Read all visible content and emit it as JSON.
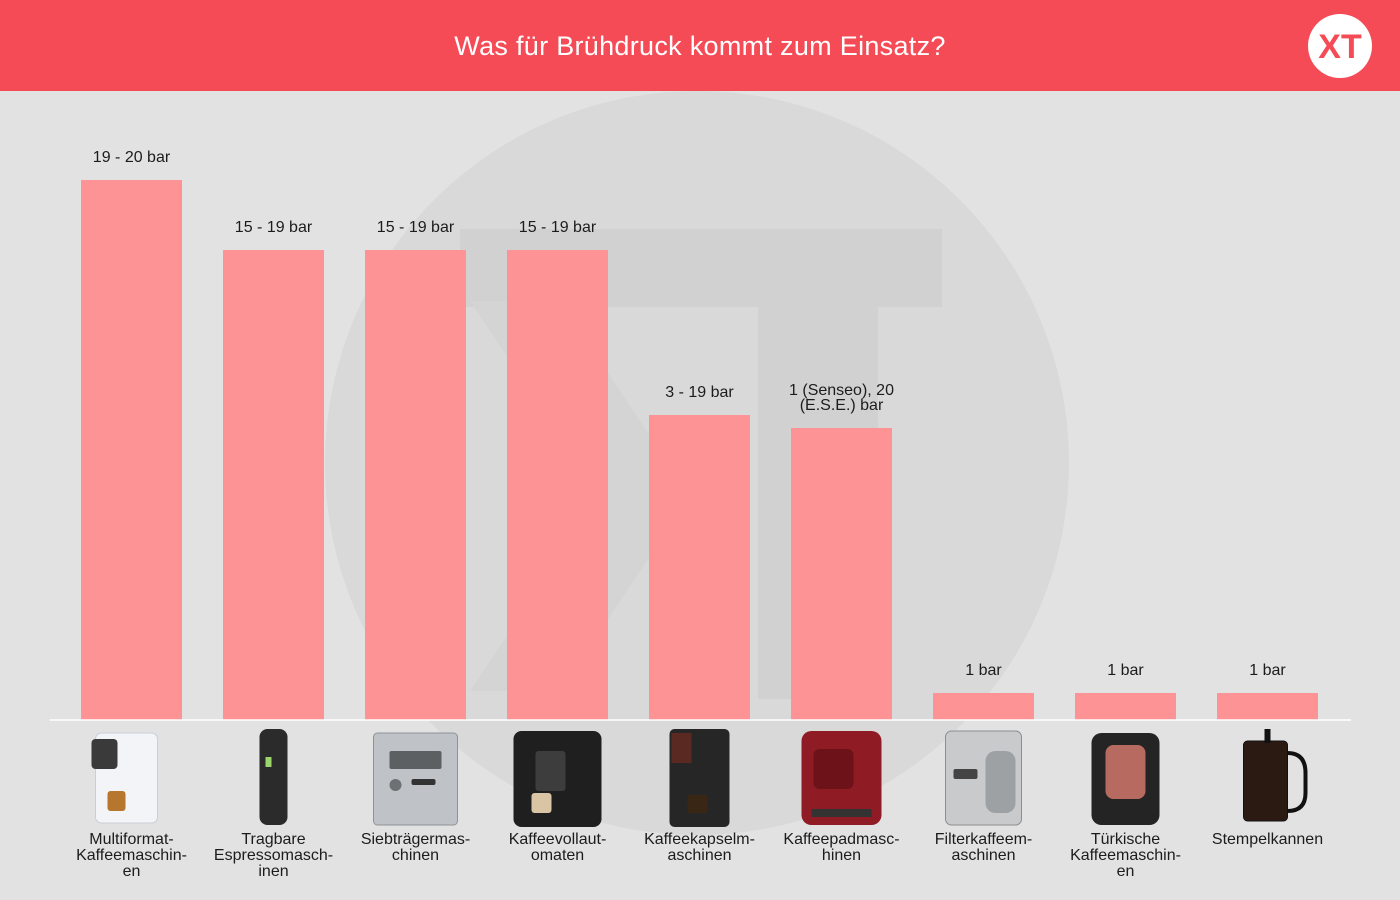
{
  "header": {
    "title": "Was für Brühdruck kommt zum Einsatz?",
    "logo_text": "XT"
  },
  "colors": {
    "header_bg": "#f54b56",
    "bar": "#fe9396",
    "background": "#e2e2e2",
    "watermark": "#d8d8d8"
  },
  "chart_data": {
    "type": "bar",
    "title": "Was für Brühdruck kommt zum Einsatz?",
    "xlabel": "",
    "ylabel": "",
    "unit": "bar",
    "ylim": [
      0,
      20
    ],
    "grid": false,
    "legend": "none",
    "categories": [
      "Multiformat-Kaffeemaschinen",
      "Tragbare Espressomaschinen",
      "Siebträgermaschinen",
      "Kaffeevollautomaten",
      "Kaffeekapselmaschinen",
      "Kaffeepadmaschinen",
      "Filterkaffeemaschinen",
      "Türkische Kaffeemaschinen",
      "Stempelkannen"
    ],
    "category_label_lines": [
      [
        "Multiformat-",
        "Kaffeemaschin-",
        "en"
      ],
      [
        "Tragbare",
        "Espressomasch-",
        "inen"
      ],
      [
        "Siebträgermas-",
        "chinen"
      ],
      [
        "Kaffeevollaut-",
        "omaten"
      ],
      [
        "Kaffeekapselm-",
        "aschinen"
      ],
      [
        "Kaffeepadmasc-",
        "hinen"
      ],
      [
        "Filterkaffeem-",
        "aschinen"
      ],
      [
        "Türkische",
        "Kaffeemaschin-",
        "en"
      ],
      [
        "Stempelkannen"
      ]
    ],
    "values": [
      20,
      17.4,
      17.4,
      17.4,
      11.3,
      10.8,
      1,
      1,
      1
    ],
    "data_labels": [
      [
        "19 - 20 bar"
      ],
      [
        "15 - 19 bar"
      ],
      [
        "15 - 19 bar"
      ],
      [
        "15 - 19 bar"
      ],
      [
        "3 - 19 bar"
      ],
      [
        "1 (Senseo), 20",
        "(E.S.E.) bar"
      ],
      [
        "1 bar"
      ],
      [
        "1 bar"
      ],
      [
        "1 bar"
      ]
    ],
    "product_icons": [
      "multiformat-machine-icon",
      "portable-espresso-icon",
      "portafilter-machine-icon",
      "fully-automatic-machine-icon",
      "capsule-machine-icon",
      "pad-machine-icon",
      "filter-coffee-machine-icon",
      "turkish-coffee-machine-icon",
      "french-press-icon"
    ]
  }
}
